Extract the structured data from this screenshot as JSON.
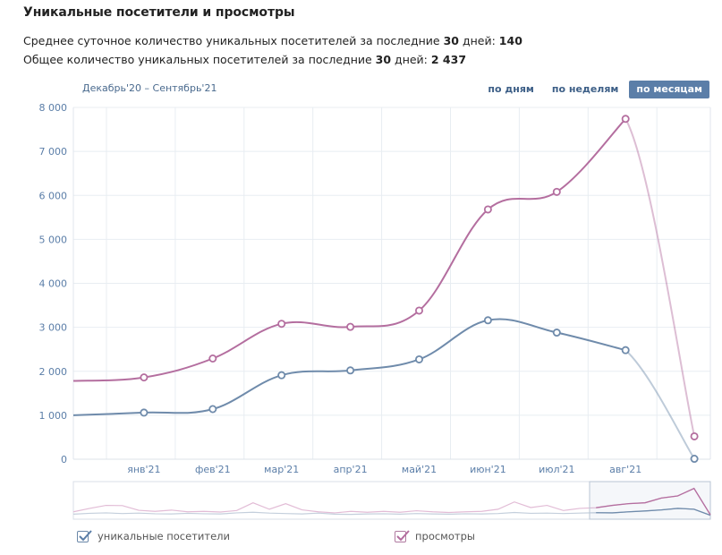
{
  "header": {
    "title": "Уникальные посетители и просмотры",
    "stat1": {
      "prefix": "Среднее суточное количество уникальных посетителей за последние ",
      "days": "30",
      "mid": " дней: ",
      "value": "140"
    },
    "stat2": {
      "prefix": "Общее количество уникальных посетителей за последние ",
      "days": "30",
      "mid": " дней: ",
      "value": "2 437"
    }
  },
  "range_label": "Декабрь'20 – Сентябрь'21",
  "period_buttons": [
    {
      "label": "по дням",
      "active": false
    },
    {
      "label": "по неделям",
      "active": false
    },
    {
      "label": "по месяцам",
      "active": true
    }
  ],
  "legend": [
    {
      "label": "уникальные посетители",
      "checked": true
    },
    {
      "label": "просмотры",
      "checked": true
    }
  ],
  "colors": {
    "visitors": "#6f8bab",
    "views": "#b46e9f",
    "grid": "#e8edf2",
    "tick": "#5b7ea8"
  },
  "chart_data": {
    "type": "line",
    "title": "",
    "xlabel": "",
    "ylabel": "",
    "ylim": [
      0,
      8000
    ],
    "yticks": [
      0,
      1000,
      2000,
      3000,
      4000,
      5000,
      6000,
      7000,
      8000
    ],
    "ytick_labels": [
      "0",
      "1 000",
      "2 000",
      "3 000",
      "4 000",
      "5 000",
      "6 000",
      "7 000",
      "8 000"
    ],
    "categories": [
      "дек'20",
      "янв'21",
      "фев'21",
      "мар'21",
      "апр'21",
      "май'21",
      "июн'21",
      "июл'21",
      "авг'21",
      "сен'21"
    ],
    "xtick_labels": [
      "янв'21",
      "фев'21",
      "мар'21",
      "апр'21",
      "май'21",
      "июн'21",
      "июл'21",
      "авг'21"
    ],
    "series": [
      {
        "name": "уникальные посетители",
        "values": [
          1000,
          1060,
          1140,
          1910,
          2020,
          2270,
          3160,
          2880,
          2480,
          10
        ]
      },
      {
        "name": "просмотры",
        "values": [
          1780,
          1860,
          2290,
          3080,
          3010,
          3380,
          5680,
          6080,
          7740,
          520
        ]
      }
    ],
    "navigator": {
      "series": [
        {
          "name": "уникальные посетители",
          "values": [
            150,
            190,
            210,
            180,
            200,
            170,
            160,
            190,
            170,
            160,
            210,
            240,
            200,
            180,
            160,
            200,
            150,
            140,
            160,
            170,
            150,
            180,
            160,
            150,
            170,
            160,
            180,
            230,
            190,
            200,
            180,
            200,
            220,
            210,
            260,
            300,
            350,
            420,
            380,
            100
          ]
        },
        {
          "name": "просмотры",
          "values": [
            260,
            420,
            560,
            550,
            330,
            280,
            340,
            260,
            280,
            250,
            320,
            680,
            380,
            640,
            350,
            260,
            210,
            280,
            240,
            280,
            240,
            310,
            260,
            230,
            260,
            280,
            380,
            720,
            460,
            560,
            320,
            420,
            450,
            560,
            640,
            680,
            900,
            1000,
            1350,
            120
          ]
        }
      ]
    }
  }
}
